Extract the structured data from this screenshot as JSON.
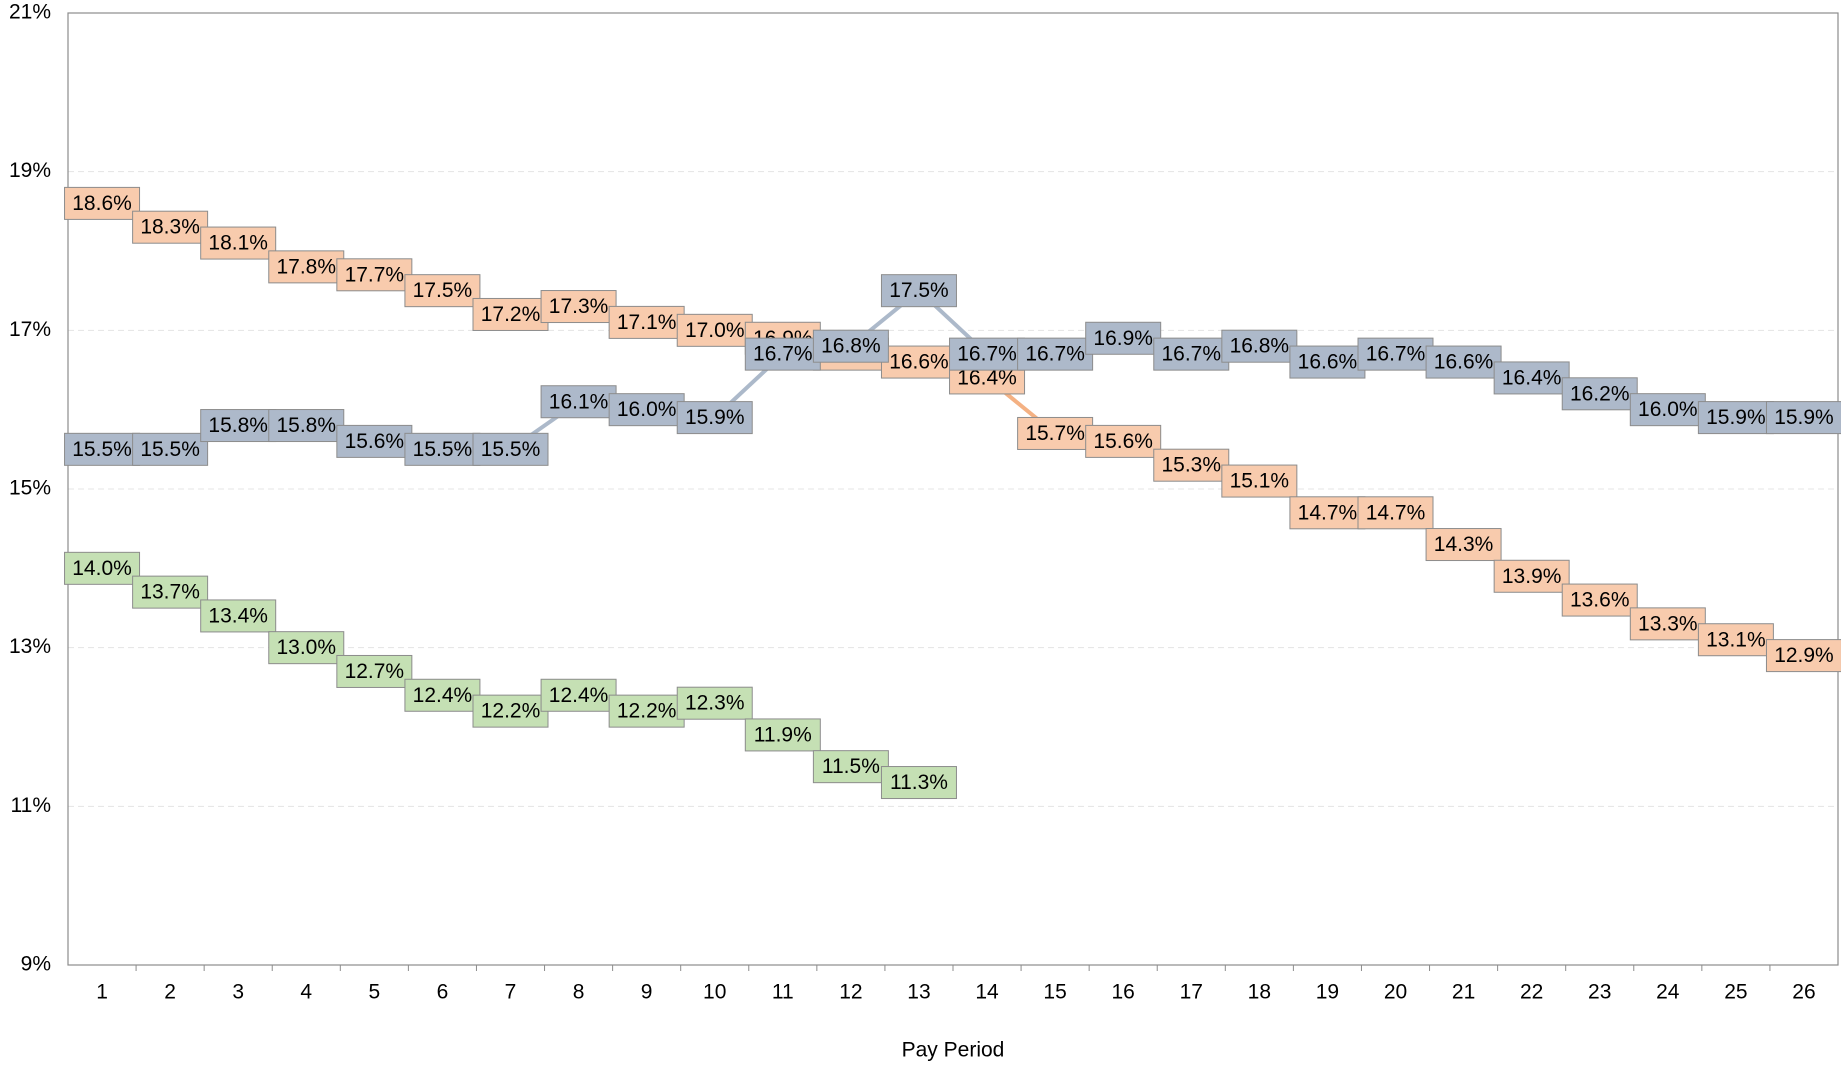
{
  "chart_data": {
    "type": "line",
    "x_label": "Pay Period",
    "categories": [
      1,
      2,
      3,
      4,
      5,
      6,
      7,
      8,
      9,
      10,
      11,
      12,
      13,
      14,
      15,
      16,
      17,
      18,
      19,
      20,
      21,
      22,
      23,
      24,
      25,
      26
    ],
    "series": [
      {
        "color": "#f4b183",
        "label_fill": "#f8cbad",
        "values": [
          18.6,
          18.3,
          18.1,
          17.8,
          17.7,
          17.5,
          17.2,
          17.3,
          17.1,
          17.0,
          16.9,
          16.7,
          16.6,
          16.4,
          15.7,
          15.6,
          15.3,
          15.1,
          14.7,
          14.7,
          14.3,
          13.9,
          13.6,
          13.3,
          13.1,
          12.9
        ],
        "value_labels": [
          "18.6%",
          "18.3%",
          "18.1%",
          "17.8%",
          "17.7%",
          "17.5%",
          "17.2%",
          "17.3%",
          "17.1%",
          "17.0%",
          "16.9%",
          "16.7%",
          "16.6%",
          "16.4%",
          "15.7%",
          "15.6%",
          "15.3%",
          "15.1%",
          "14.7%",
          "14.7%",
          "14.3%",
          "13.9%",
          "13.6%",
          "13.3%",
          "13.1%",
          "12.9%"
        ]
      },
      {
        "color": "#a9d18e",
        "label_fill": "#c5e0b4",
        "values": [
          14.0,
          13.7,
          13.4,
          13.0,
          12.7,
          12.4,
          12.2,
          12.4,
          12.2,
          12.3,
          11.9,
          11.5,
          11.3,
          null,
          null,
          null,
          null,
          null,
          null,
          null,
          null,
          null,
          null,
          null,
          null,
          null
        ],
        "value_labels": [
          "14.0%",
          "13.7%",
          "13.4%",
          "13.0%",
          "12.7%",
          "12.4%",
          "12.2%",
          "12.4%",
          "12.2%",
          "12.3%",
          "11.9%",
          "11.5%",
          "11.3%",
          null,
          null,
          null,
          null,
          null,
          null,
          null,
          null,
          null,
          null,
          null,
          null,
          null
        ]
      },
      {
        "color": "#acb9ca",
        "label_fill": "#adb9ca",
        "values": [
          15.5,
          15.5,
          15.8,
          15.8,
          15.6,
          15.5,
          15.5,
          16.1,
          16.0,
          15.9,
          16.7,
          16.8,
          17.5,
          16.7,
          16.7,
          16.9,
          16.7,
          16.8,
          16.6,
          16.7,
          16.6,
          16.4,
          16.2,
          16.0,
          15.9,
          15.9
        ],
        "value_labels": [
          "15.5%",
          "15.5%",
          "15.8%",
          "15.8%",
          "15.6%",
          "15.5%",
          "15.5%",
          "16.1%",
          "16.0%",
          "15.9%",
          "16.7%",
          "16.8%",
          "17.5%",
          "16.7%",
          "16.7%",
          "16.9%",
          "16.7%",
          "16.8%",
          "16.6%",
          "16.7%",
          "16.6%",
          "16.4%",
          "16.2%",
          "16.0%",
          "15.9%",
          "15.9%"
        ]
      }
    ],
    "ylim": [
      9,
      21
    ],
    "yticks": [
      {
        "value": 9,
        "label": "9%"
      },
      {
        "value": 11,
        "label": "11%"
      },
      {
        "value": 13,
        "label": "13%"
      },
      {
        "value": 15,
        "label": "15%"
      },
      {
        "value": 17,
        "label": "17%"
      },
      {
        "value": 19,
        "label": "19%"
      },
      {
        "value": 21,
        "label": "21%"
      }
    ],
    "grid": true
  }
}
